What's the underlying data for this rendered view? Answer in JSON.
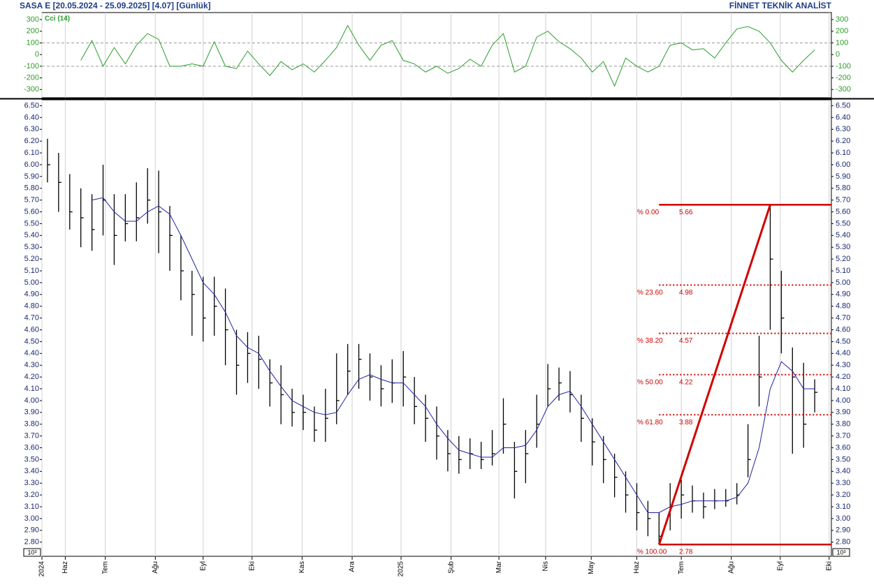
{
  "header": {
    "title": "SASA  E  [20.05.2024 - 25.09.2025]  [4.07]  [Günlük]",
    "brand": "FİNNET TEKNİK ANALİST"
  },
  "chart_data": [
    {
      "type": "line",
      "name": "Cci (14)",
      "color": "#2a9d2a",
      "ylim": [
        -370,
        360
      ],
      "yticks": [
        300,
        200,
        100,
        0,
        -100,
        -200,
        -300
      ],
      "reference_lines": [
        100,
        -100
      ],
      "values": [
        null,
        null,
        null,
        -50,
        120,
        -100,
        60,
        -80,
        80,
        180,
        130,
        -100,
        -100,
        -80,
        -100,
        110,
        -100,
        -120,
        30,
        -80,
        -180,
        -60,
        -130,
        -80,
        -150,
        -50,
        60,
        250,
        80,
        -50,
        80,
        120,
        -50,
        -80,
        -150,
        -100,
        -160,
        -120,
        -40,
        -100,
        80,
        180,
        -150,
        -100,
        150,
        200,
        110,
        50,
        -30,
        -150,
        -60,
        -270,
        -30,
        -100,
        -150,
        -100,
        80,
        100,
        40,
        50,
        -30,
        100,
        220,
        240,
        200,
        100,
        -50,
        -150,
        -50,
        40
      ]
    },
    {
      "type": "ohlc",
      "color": "#000000",
      "scale_label": "10³",
      "xlim": [
        -0.5,
        70.5
      ],
      "xticks": [
        {
          "value": -0.5,
          "label": "2024"
        },
        {
          "value": 1.6,
          "label": "Haz"
        },
        {
          "value": 5.2,
          "label": "Tem"
        },
        {
          "value": 9.7,
          "label": "Ağu"
        },
        {
          "value": 14.0,
          "label": "Eyl"
        },
        {
          "value": 18.4,
          "label": "Eki"
        },
        {
          "value": 22.9,
          "label": "Kas"
        },
        {
          "value": 27.4,
          "label": "Ara"
        },
        {
          "value": 31.8,
          "label": "2025"
        },
        {
          "value": 36.3,
          "label": "Şub"
        },
        {
          "value": 40.6,
          "label": "Mar"
        },
        {
          "value": 44.8,
          "label": "Nis"
        },
        {
          "value": 48.9,
          "label": "May"
        },
        {
          "value": 53.0,
          "label": "Haz"
        },
        {
          "value": 57.0,
          "label": "Tem"
        },
        {
          "value": 61.5,
          "label": "Ağu"
        },
        {
          "value": 65.9,
          "label": "Eyl"
        },
        {
          "value": 70.3,
          "label": "Eki"
        }
      ],
      "ylim": [
        2.68,
        6.55
      ],
      "yticks": [
        {
          "value": 2.8,
          "label": "2.80"
        },
        {
          "value": 2.9,
          "label": "2.90"
        },
        {
          "value": 3.0,
          "label": "3.00"
        },
        {
          "value": 3.1,
          "label": "3.10"
        },
        {
          "value": 3.2,
          "label": "3.20"
        },
        {
          "value": 3.3,
          "label": "3.30"
        },
        {
          "value": 3.4,
          "label": "3.40"
        },
        {
          "value": 3.5,
          "label": "3.50"
        },
        {
          "value": 3.6,
          "label": "3.60"
        },
        {
          "value": 3.7,
          "label": "3.70"
        },
        {
          "value": 3.8,
          "label": "3.80"
        },
        {
          "value": 3.9,
          "label": "3.90"
        },
        {
          "value": 4.0,
          "label": "4.00"
        },
        {
          "value": 4.1,
          "label": "4.10"
        },
        {
          "value": 4.2,
          "label": "4.20"
        },
        {
          "value": 4.3,
          "label": "4.30"
        },
        {
          "value": 4.4,
          "label": "4.40"
        },
        {
          "value": 4.5,
          "label": "4.50"
        },
        {
          "value": 4.6,
          "label": "4.60"
        },
        {
          "value": 4.7,
          "label": "4.70"
        },
        {
          "value": 4.8,
          "label": "4.80"
        },
        {
          "value": 4.9,
          "label": "4.90"
        },
        {
          "value": 5.0,
          "label": "5.00"
        },
        {
          "value": 5.1,
          "label": "5.10"
        },
        {
          "value": 5.2,
          "label": "5.20"
        },
        {
          "value": 5.3,
          "label": "5.30"
        },
        {
          "value": 5.4,
          "label": "5.40"
        },
        {
          "value": 5.5,
          "label": "5.50"
        },
        {
          "value": 5.6,
          "label": "5.60"
        },
        {
          "value": 5.7,
          "label": "5.70"
        },
        {
          "value": 5.8,
          "label": "5.80"
        },
        {
          "value": 5.9,
          "label": "5.90"
        },
        {
          "value": 6.0,
          "label": "6.00"
        },
        {
          "value": 6.1,
          "label": "6.10"
        },
        {
          "value": 6.2,
          "label": "6.20"
        },
        {
          "value": 6.3,
          "label": "6.30"
        },
        {
          "value": 6.4,
          "label": "6.40"
        },
        {
          "value": 6.5,
          "label": "6.50"
        }
      ],
      "x": [
        0,
        1,
        2,
        3,
        4,
        5,
        6,
        7,
        8,
        9,
        10,
        11,
        12,
        13,
        14,
        15,
        16,
        17,
        18,
        19,
        20,
        21,
        22,
        23,
        24,
        25,
        26,
        27,
        28,
        29,
        30,
        31,
        32,
        33,
        34,
        35,
        36,
        37,
        38,
        39,
        40,
        41,
        42,
        43,
        44,
        45,
        46,
        47,
        48,
        49,
        50,
        51,
        52,
        53,
        54,
        55,
        56,
        57,
        58,
        59,
        60,
        61,
        62,
        63,
        64,
        65,
        66,
        67,
        68,
        69
      ],
      "high": [
        6.22,
        6.1,
        5.92,
        5.8,
        5.75,
        6.0,
        5.75,
        5.75,
        5.85,
        5.97,
        5.95,
        5.65,
        5.4,
        5.1,
        5.05,
        5.05,
        4.95,
        4.6,
        4.58,
        4.55,
        4.35,
        4.3,
        4.1,
        4.05,
        3.95,
        4.1,
        4.4,
        4.48,
        4.48,
        4.4,
        4.3,
        4.35,
        4.42,
        4.2,
        4.05,
        3.95,
        3.75,
        3.7,
        3.68,
        3.65,
        3.75,
        4.02,
        3.65,
        3.75,
        4.05,
        4.31,
        4.28,
        4.25,
        4.05,
        3.85,
        3.7,
        3.55,
        3.4,
        3.3,
        3.15,
        3.05,
        3.3,
        3.33,
        3.28,
        3.22,
        3.25,
        3.25,
        3.3,
        3.8,
        4.55,
        5.66,
        5.1,
        4.45,
        4.32,
        4.18
      ],
      "low": [
        5.85,
        5.6,
        5.45,
        5.3,
        5.27,
        5.4,
        5.15,
        5.35,
        5.35,
        5.5,
        5.25,
        5.1,
        4.85,
        4.55,
        4.5,
        4.55,
        4.3,
        4.05,
        4.15,
        4.1,
        3.95,
        3.8,
        3.78,
        3.75,
        3.65,
        3.65,
        3.8,
        4.05,
        4.1,
        4.0,
        3.95,
        3.98,
        3.95,
        3.8,
        3.65,
        3.5,
        3.4,
        3.38,
        3.42,
        3.42,
        3.45,
        3.55,
        3.17,
        3.3,
        3.6,
        3.95,
        4.0,
        3.9,
        3.65,
        3.45,
        3.3,
        3.18,
        3.05,
        2.9,
        2.85,
        2.78,
        2.9,
        3.0,
        3.05,
        3.0,
        3.08,
        3.1,
        3.12,
        3.35,
        3.95,
        4.6,
        4.4,
        3.55,
        3.6,
        3.9
      ],
      "close": [
        6.0,
        5.85,
        5.6,
        5.55,
        5.45,
        5.7,
        5.4,
        5.5,
        5.55,
        5.7,
        5.6,
        5.4,
        5.1,
        4.9,
        4.7,
        4.8,
        4.6,
        4.3,
        4.4,
        4.35,
        4.15,
        4.05,
        3.9,
        3.9,
        3.75,
        3.85,
        4.0,
        4.25,
        4.35,
        4.2,
        4.1,
        4.15,
        4.2,
        3.95,
        3.85,
        3.7,
        3.55,
        3.5,
        3.55,
        3.5,
        3.55,
        3.8,
        3.4,
        3.55,
        3.8,
        4.1,
        4.15,
        4.05,
        3.85,
        3.65,
        3.5,
        3.35,
        3.2,
        3.05,
        3.0,
        2.85,
        3.1,
        3.2,
        3.15,
        3.1,
        3.15,
        3.15,
        3.2,
        3.5,
        4.2,
        5.2,
        4.7,
        4.2,
        3.8,
        4.07
      ],
      "moving_average": {
        "color": "#2020a0",
        "values": [
          null,
          null,
          null,
          null,
          5.7,
          5.72,
          5.6,
          5.52,
          5.52,
          5.6,
          5.65,
          5.58,
          5.4,
          5.2,
          5.0,
          4.9,
          4.75,
          4.55,
          4.45,
          4.4,
          4.25,
          4.12,
          4.0,
          3.95,
          3.9,
          3.88,
          3.9,
          4.05,
          4.18,
          4.22,
          4.18,
          4.15,
          4.15,
          4.05,
          3.95,
          3.8,
          3.68,
          3.58,
          3.55,
          3.52,
          3.52,
          3.6,
          3.6,
          3.62,
          3.75,
          3.95,
          4.05,
          4.08,
          3.95,
          3.8,
          3.65,
          3.5,
          3.35,
          3.2,
          3.05,
          3.05,
          3.1,
          3.12,
          3.15,
          3.15,
          3.15,
          3.15,
          3.18,
          3.3,
          3.6,
          4.1,
          4.33,
          4.25,
          4.1,
          4.1
        ]
      },
      "fibonacci": {
        "color": "#d00000",
        "from": [
          55,
          2.78
        ],
        "to": [
          65,
          5.66
        ],
        "levels": [
          {
            "label": "% 0.00",
            "value": 5.66
          },
          {
            "label": "% 23.60",
            "value": 4.98
          },
          {
            "label": "% 38.20",
            "value": 4.57
          },
          {
            "label": "% 50.00",
            "value": 4.22
          },
          {
            "label": "% 61.80",
            "value": 3.88
          },
          {
            "label": "% 100.00",
            "value": 2.78
          }
        ]
      }
    }
  ]
}
